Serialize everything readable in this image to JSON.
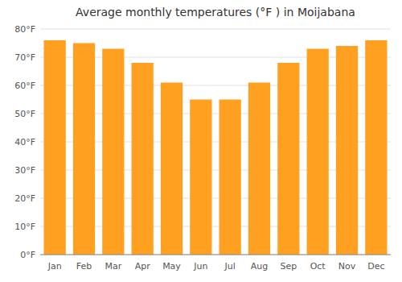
{
  "chart_data": {
    "type": "bar",
    "title": "Average monthly temperatures (°F ) in Moijabana",
    "categories": [
      "Jan",
      "Feb",
      "Mar",
      "Apr",
      "May",
      "Jun",
      "Jul",
      "Aug",
      "Sep",
      "Oct",
      "Nov",
      "Dec"
    ],
    "values": [
      76,
      75,
      73,
      68,
      61,
      55,
      55,
      61,
      68,
      73,
      74,
      76
    ],
    "color": "#FFA020",
    "ylim": [
      0,
      80
    ],
    "yticks": [
      {
        "value": 0,
        "label": "0°F"
      },
      {
        "value": 10,
        "label": "10°F"
      },
      {
        "value": 20,
        "label": "20°F"
      },
      {
        "value": 30,
        "label": "30°F"
      },
      {
        "value": 40,
        "label": "40°F"
      },
      {
        "value": 50,
        "label": "50°F"
      },
      {
        "value": 60,
        "label": "60°F"
      },
      {
        "value": 70,
        "label": "70°F"
      },
      {
        "value": 80,
        "label": "80°F"
      }
    ],
    "grid": true
  }
}
